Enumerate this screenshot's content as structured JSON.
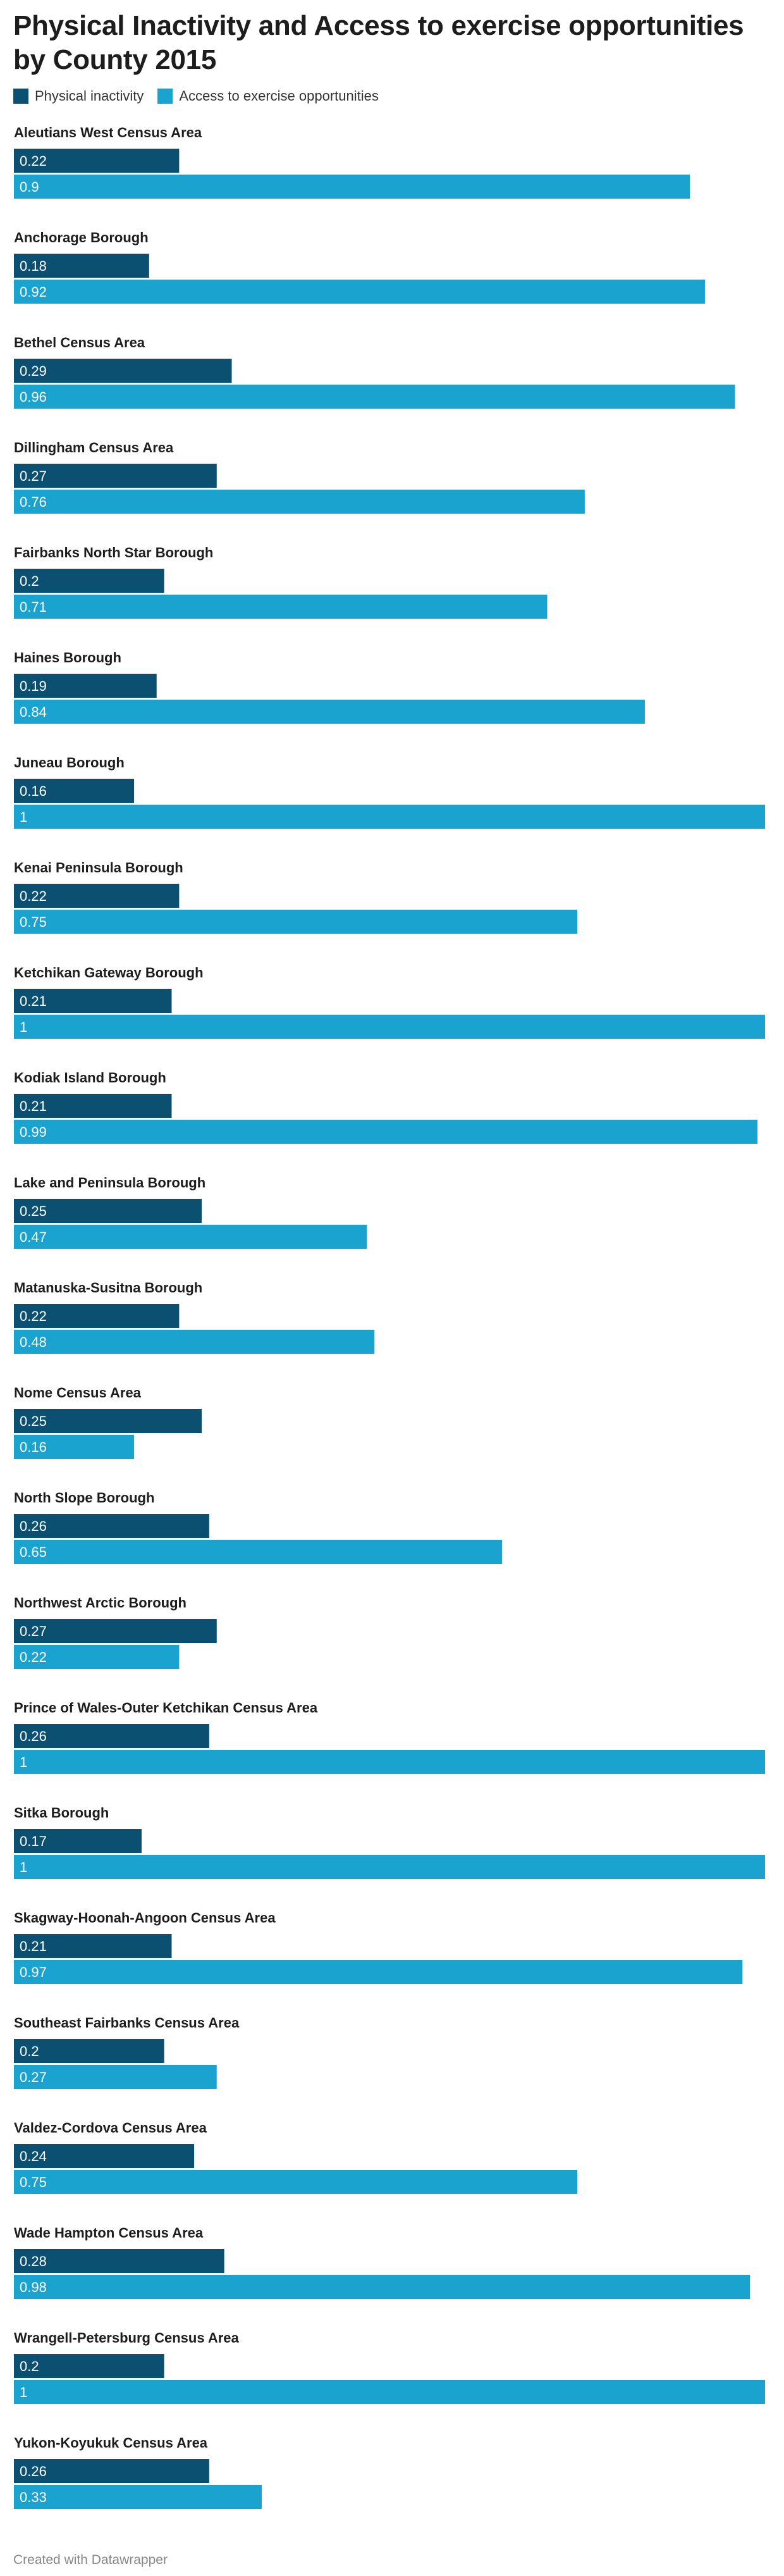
{
  "chart_data": {
    "type": "bar",
    "orientation": "horizontal",
    "title": "Physical Inactivity and Access to exercise opportunities by County 2015",
    "xlim": [
      0,
      1
    ],
    "grid": false,
    "legend_placement": "top-left",
    "series": [
      {
        "name": "Physical inactivity",
        "color": "#0b4f71",
        "values": [
          0.22,
          0.18,
          0.29,
          0.27,
          0.2,
          0.19,
          0.16,
          0.22,
          0.21,
          0.21,
          0.25,
          0.22,
          0.25,
          0.26,
          0.27,
          0.26,
          0.17,
          0.21,
          0.2,
          0.24,
          0.28,
          0.2,
          0.26
        ]
      },
      {
        "name": "Access to exercise opportunities",
        "color": "#1ba3d0",
        "values": [
          0.9,
          0.92,
          0.96,
          0.76,
          0.71,
          0.84,
          1,
          0.75,
          1,
          0.99,
          0.47,
          0.48,
          0.16,
          0.65,
          0.22,
          1,
          1,
          0.97,
          0.27,
          0.75,
          0.98,
          1,
          0.33
        ]
      }
    ],
    "categories": [
      "Aleutians West Census Area",
      "Anchorage Borough",
      "Bethel Census Area",
      "Dillingham Census Area",
      "Fairbanks North Star Borough",
      "Haines Borough",
      "Juneau Borough",
      "Kenai Peninsula Borough",
      "Ketchikan Gateway Borough",
      "Kodiak Island Borough",
      "Lake and Peninsula Borough",
      "Matanuska-Susitna Borough",
      "Nome Census Area",
      "North Slope Borough",
      "Northwest Arctic Borough",
      "Prince of Wales-Outer Ketchikan Census Area",
      "Sitka Borough",
      "Skagway-Hoonah-Angoon Census Area",
      "Southeast Fairbanks Census Area",
      "Valdez-Cordova Census Area",
      "Wade Hampton Census Area",
      "Wrangell-Petersburg Census Area",
      "Yukon-Koyukuk Census Area"
    ]
  },
  "footer": {
    "credit": "Created with Datawrapper"
  }
}
